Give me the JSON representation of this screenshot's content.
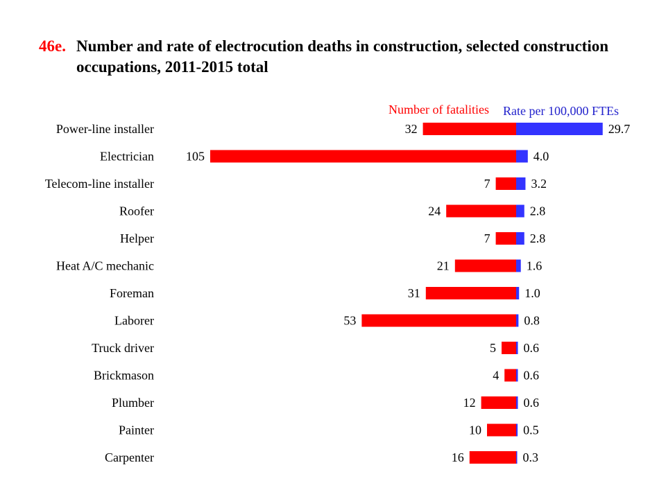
{
  "title": {
    "number": "46e.",
    "text": "Number and rate of electrocution deaths in construction, selected construction occupations, 2011-2015 total"
  },
  "colors": {
    "fatalities": "#ff0000",
    "rate": "#3333ff"
  },
  "chart_data": {
    "type": "bar",
    "orientation": "horizontal",
    "layout": "back-to-back",
    "categories": [
      "Power-line installer",
      "Electrician",
      "Telecom-line installer",
      "Roofer",
      "Helper",
      "Heat A/C mechanic",
      "Foreman",
      "Laborer",
      "Truck driver",
      "Brickmason",
      "Plumber",
      "Painter",
      "Carpenter"
    ],
    "series": [
      {
        "name": "Number of fatalities",
        "direction": "left",
        "color": "#ff0000",
        "values": [
          32,
          105,
          7,
          24,
          7,
          21,
          31,
          53,
          5,
          4,
          12,
          10,
          16
        ],
        "labels": [
          "32",
          "105",
          "7",
          "24",
          "7",
          "21",
          "31",
          "53",
          "5",
          "4",
          "12",
          "10",
          "16"
        ]
      },
      {
        "name": "Rate per 100,000 FTEs",
        "direction": "right",
        "color": "#3333ff",
        "values": [
          29.7,
          4.0,
          3.2,
          2.8,
          2.8,
          1.6,
          1.0,
          0.8,
          0.6,
          0.6,
          0.6,
          0.5,
          0.3
        ],
        "labels": [
          "29.7",
          "4.0",
          "3.2",
          "2.8",
          "2.8",
          "1.6",
          "1.0",
          "0.8",
          "0.6",
          "0.6",
          "0.6",
          "0.5",
          "0.3"
        ]
      }
    ],
    "legend": "top",
    "grid": false
  }
}
